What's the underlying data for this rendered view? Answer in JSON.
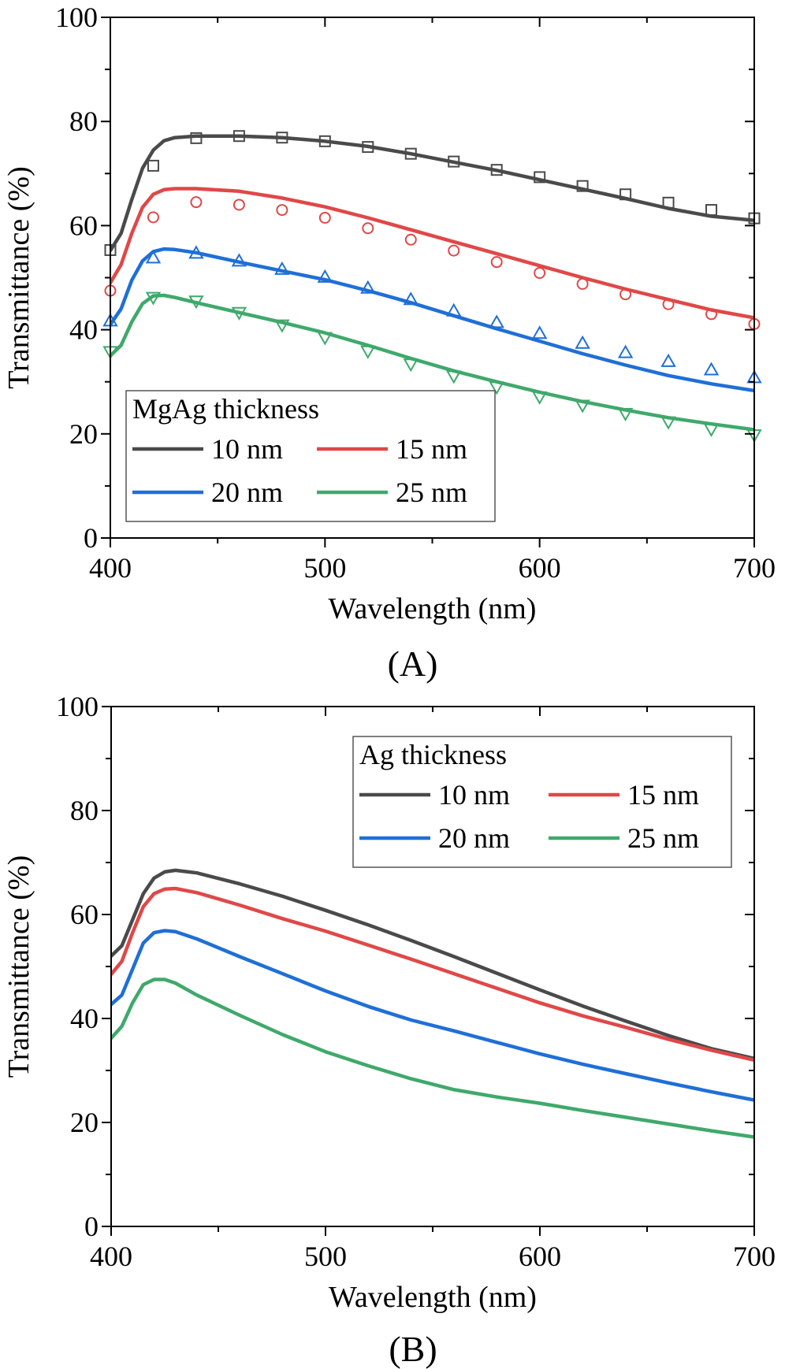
{
  "chart_data": [
    {
      "type": "line",
      "panel_label": "(A)",
      "title": "",
      "xlabel": "Wavelength (nm)",
      "ylabel": "Transmittance (%)",
      "xlim": [
        400,
        700
      ],
      "ylim": [
        0,
        100
      ],
      "x_ticks": [
        400,
        500,
        600,
        700
      ],
      "y_ticks": [
        0,
        20,
        40,
        60,
        80,
        100
      ],
      "grid": false,
      "legend": {
        "title": "MgAg thickness",
        "placement": "bottom-left",
        "entries": [
          "10 nm",
          "15 nm",
          "20 nm",
          "25 nm"
        ]
      },
      "series": [
        {
          "name": "10 nm",
          "color": "#4a4a4a",
          "marker": "square",
          "line_x": [
            400,
            405,
            410,
            415,
            420,
            425,
            430,
            440,
            460,
            480,
            500,
            520,
            540,
            560,
            580,
            600,
            620,
            640,
            660,
            680,
            700
          ],
          "line_y": [
            55.2,
            58.5,
            65,
            71,
            74.5,
            76.3,
            76.9,
            77.2,
            77.2,
            76.9,
            76.2,
            75.2,
            73.8,
            72.2,
            70.6,
            68.8,
            67,
            65.2,
            63.3,
            61.8,
            61
          ],
          "marker_x": [
            400,
            420,
            440,
            460,
            480,
            500,
            520,
            540,
            560,
            580,
            600,
            620,
            640,
            660,
            680,
            700
          ],
          "marker_y": [
            55.3,
            71.5,
            76.8,
            77.2,
            76.9,
            76.2,
            75.1,
            73.8,
            72.3,
            70.7,
            69.3,
            67.6,
            66,
            64.4,
            63,
            61.4
          ]
        },
        {
          "name": "15 nm",
          "color": "#e04848",
          "marker": "circle",
          "line_x": [
            400,
            405,
            410,
            415,
            420,
            425,
            430,
            440,
            460,
            480,
            500,
            520,
            540,
            560,
            580,
            600,
            620,
            640,
            660,
            680,
            700
          ],
          "line_y": [
            49,
            52.5,
            58.5,
            63.5,
            66,
            66.9,
            67.1,
            67.1,
            66.6,
            65.3,
            63.6,
            61.5,
            59.2,
            56.9,
            54.6,
            52.3,
            50,
            47.8,
            45.8,
            43.8,
            42.3
          ],
          "marker_x": [
            400,
            420,
            440,
            460,
            480,
            500,
            520,
            540,
            560,
            580,
            600,
            620,
            640,
            660,
            680,
            700
          ],
          "marker_y": [
            47.5,
            61.6,
            64.5,
            64,
            63,
            61.5,
            59.5,
            57.3,
            55.2,
            53,
            50.9,
            48.8,
            46.8,
            44.9,
            43,
            41.1
          ]
        },
        {
          "name": "20 nm",
          "color": "#1f6fd6",
          "marker": "triangle-up",
          "line_x": [
            400,
            405,
            410,
            415,
            420,
            425,
            430,
            440,
            460,
            480,
            500,
            520,
            540,
            560,
            580,
            600,
            620,
            640,
            660,
            680,
            700
          ],
          "line_y": [
            41,
            44,
            49.5,
            53.2,
            55,
            55.5,
            55.4,
            54.8,
            53,
            51.3,
            49.6,
            47.5,
            45.2,
            42.7,
            40.2,
            37.8,
            35.4,
            33.2,
            31.2,
            29.6,
            28.3
          ],
          "marker_x": [
            400,
            420,
            440,
            460,
            480,
            500,
            520,
            540,
            560,
            580,
            600,
            620,
            640,
            660,
            680,
            700
          ],
          "marker_y": [
            41.7,
            53.8,
            54.7,
            53.2,
            51.6,
            50.1,
            48,
            45.8,
            43.6,
            41.4,
            39.3,
            37.4,
            35.6,
            33.9,
            32.3,
            30.8
          ]
        },
        {
          "name": "25 nm",
          "color": "#3fa96b",
          "marker": "triangle-down",
          "line_x": [
            400,
            405,
            410,
            415,
            420,
            425,
            430,
            440,
            460,
            480,
            500,
            520,
            540,
            560,
            580,
            600,
            620,
            640,
            660,
            680,
            700
          ],
          "line_y": [
            35,
            37,
            41.5,
            45,
            46.5,
            46.6,
            46.2,
            45.2,
            43.3,
            41.4,
            39.4,
            37,
            34.5,
            32.1,
            30,
            28,
            26.2,
            24.6,
            23.1,
            21.9,
            20.8
          ],
          "marker_x": [
            400,
            420,
            440,
            460,
            480,
            500,
            520,
            540,
            560,
            580,
            600,
            620,
            640,
            660,
            680,
            700
          ],
          "marker_y": [
            35.8,
            46.2,
            45.5,
            43.3,
            40.9,
            38.5,
            35.9,
            33.4,
            31.1,
            29,
            27.1,
            25.5,
            23.9,
            22.3,
            20.9,
            19.8
          ]
        }
      ]
    },
    {
      "type": "line",
      "panel_label": "(B)",
      "title": "",
      "xlabel": "Wavelength (nm)",
      "ylabel": "Transmittance (%)",
      "xlim": [
        400,
        700
      ],
      "ylim": [
        0,
        100
      ],
      "x_ticks": [
        400,
        500,
        600,
        700
      ],
      "y_ticks": [
        0,
        20,
        40,
        60,
        80,
        100
      ],
      "grid": false,
      "legend": {
        "title": "Ag thickness",
        "placement": "top-right",
        "entries": [
          "10 nm",
          "15 nm",
          "20 nm",
          "25 nm"
        ]
      },
      "series": [
        {
          "name": "10 nm",
          "color": "#4a4a4a",
          "line_x": [
            400,
            405,
            410,
            415,
            420,
            425,
            430,
            440,
            460,
            480,
            500,
            520,
            540,
            560,
            580,
            600,
            620,
            640,
            660,
            680,
            700
          ],
          "line_y": [
            52,
            54,
            59,
            64,
            67,
            68.2,
            68.5,
            68,
            65.9,
            63.5,
            60.8,
            58,
            55,
            51.9,
            48.7,
            45.5,
            42.4,
            39.5,
            36.7,
            34.2,
            32.3
          ]
        },
        {
          "name": "15 nm",
          "color": "#e04848",
          "line_x": [
            400,
            405,
            410,
            415,
            420,
            425,
            430,
            440,
            460,
            480,
            500,
            520,
            540,
            560,
            580,
            600,
            620,
            640,
            660,
            680,
            700
          ],
          "line_y": [
            48.5,
            51,
            56.5,
            61.5,
            64,
            64.9,
            65,
            64.2,
            61.8,
            59.2,
            56.8,
            54.1,
            51.4,
            48.6,
            45.8,
            43,
            40.5,
            38.3,
            36,
            33.9,
            32
          ]
        },
        {
          "name": "20 nm",
          "color": "#1f6fd6",
          "line_x": [
            400,
            405,
            410,
            415,
            420,
            425,
            430,
            440,
            460,
            480,
            500,
            520,
            540,
            560,
            580,
            600,
            620,
            640,
            660,
            680,
            700
          ],
          "line_y": [
            42.7,
            44.5,
            49.5,
            54.5,
            56.5,
            56.9,
            56.7,
            55.3,
            51.9,
            48.6,
            45.3,
            42.3,
            39.7,
            37.6,
            35.4,
            33.2,
            31.2,
            29.4,
            27.6,
            25.9,
            24.3
          ]
        },
        {
          "name": "25 nm",
          "color": "#3fa96b",
          "line_x": [
            400,
            405,
            410,
            415,
            420,
            425,
            430,
            440,
            460,
            480,
            500,
            520,
            540,
            560,
            580,
            600,
            620,
            640,
            660,
            680,
            700
          ],
          "line_y": [
            36.2,
            38.5,
            43,
            46.5,
            47.5,
            47.5,
            46.8,
            44.5,
            40.6,
            36.9,
            33.6,
            30.9,
            28.4,
            26.3,
            24.9,
            23.7,
            22.3,
            21,
            19.7,
            18.4,
            17.2
          ]
        }
      ]
    }
  ]
}
